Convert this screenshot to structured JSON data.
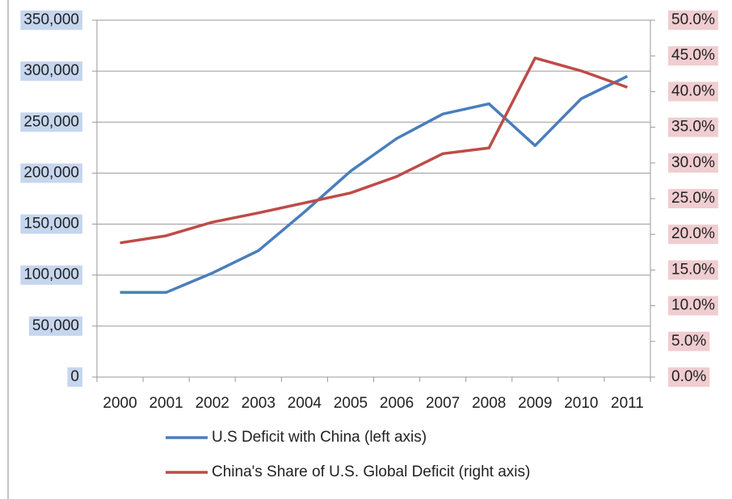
{
  "chart_data": {
    "type": "line",
    "categories": [
      "2000",
      "2001",
      "2002",
      "2003",
      "2004",
      "2005",
      "2006",
      "2007",
      "2008",
      "2009",
      "2010",
      "2011"
    ],
    "series": [
      {
        "name": "U.S Deficit with China (left axis)",
        "color": "#4a7ebb",
        "values": [
          83000,
          83000,
          102000,
          124000,
          162000,
          202000,
          234000,
          258000,
          268000,
          227000,
          273000,
          295000
        ]
      },
      {
        "name": "China's Share of U.S. Global Deficit (right axis)",
        "color": "#be4b48",
        "axis": "y2",
        "values": [
          18.8,
          19.8,
          21.7,
          23.0,
          24.4,
          25.8,
          28.1,
          31.3,
          32.1,
          44.7,
          42.9,
          40.6
        ]
      }
    ],
    "ylim": [
      0,
      350000
    ],
    "yticks": [
      0,
      {
        "value": 50000,
        "label": "50,000"
      },
      {
        "value": 100000,
        "label": "100,000"
      },
      {
        "value": 150000,
        "label": "150,000"
      },
      {
        "value": 200000,
        "label": "200,000"
      },
      {
        "value": 250000,
        "label": "250,000"
      },
      {
        "value": 300000,
        "label": "300,000"
      },
      {
        "value": 350000,
        "label": "350,000"
      }
    ],
    "y2lim": [
      0,
      50
    ],
    "y2ticks": [
      {
        "value": 0,
        "label": "0.0%"
      },
      {
        "value": 5,
        "label": "5.0%"
      },
      {
        "value": 10,
        "label": "10.0%"
      },
      {
        "value": 15,
        "label": "15.0%"
      },
      {
        "value": 20,
        "label": "20.0%"
      },
      {
        "value": 25,
        "label": "25.0%"
      },
      {
        "value": 30,
        "label": "30.0%"
      },
      {
        "value": 35,
        "label": "35.0%"
      },
      {
        "value": 40,
        "label": "40.0%"
      },
      {
        "value": 45,
        "label": "45.0%"
      },
      {
        "value": 50,
        "label": "50.0%"
      }
    ],
    "grid": true,
    "legend": "bottom"
  }
}
